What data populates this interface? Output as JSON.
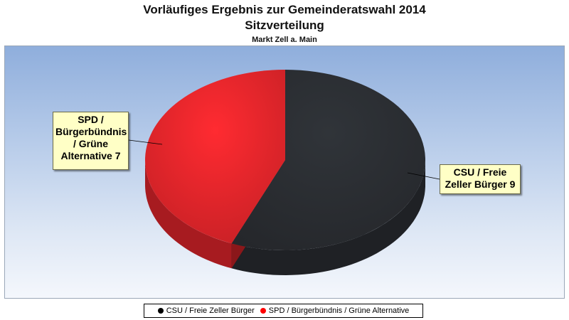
{
  "chart_data": {
    "type": "pie",
    "title": "Vorläufiges Ergebnis zur Gemeinderatswahl 2014",
    "subtitle": "Sitzverteilung",
    "caption": "Markt Zell a. Main",
    "series": [
      {
        "name": "CSU / Freie Zeller Bürger",
        "value": 9,
        "color": "#2b2e33",
        "label": "CSU / Freie Zeller Bürger 9"
      },
      {
        "name": "SPD / Bürgerbündnis / Grüne Alternative",
        "value": 7,
        "color": "#e8262c",
        "label": "SPD / Bürgerbündnis / Grüne Alternative  7"
      }
    ],
    "legend_position": "bottom"
  },
  "labels": {
    "spd_text": "SPD / Bürgerbündnis / Grüne Alternative  7",
    "csu_text": "CSU / Freie Zeller Bürger 9"
  },
  "legend": {
    "items": [
      {
        "label": "CSU / Freie Zeller Bürger",
        "color": "#000000"
      },
      {
        "label": "SPD / Bürgerbündnis / Grüne Alternative",
        "color": "#ff0000"
      }
    ]
  }
}
